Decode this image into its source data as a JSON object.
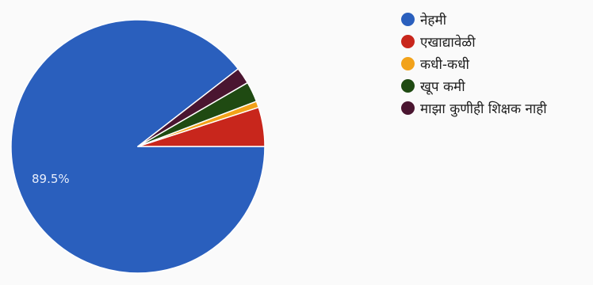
{
  "chart_data": {
    "type": "pie",
    "title": "",
    "labels": [
      "नेहमी",
      "एखाद्यावेळी",
      "कधी-कधी",
      "खूप कमी",
      "माझा कुणीही शिक्षक नाही"
    ],
    "values": [
      89.5,
      5.0,
      0.8,
      2.6,
      2.1
    ],
    "colors": [
      "#2a5fbd",
      "#c8261c",
      "#f2a21a",
      "#1f4a12",
      "#4a1530"
    ],
    "data_labels": [
      {
        "slice": 0,
        "text": "89.5%"
      }
    ],
    "start_angle_deg": 0,
    "direction": "counterclockwise",
    "legend_position": "right"
  }
}
